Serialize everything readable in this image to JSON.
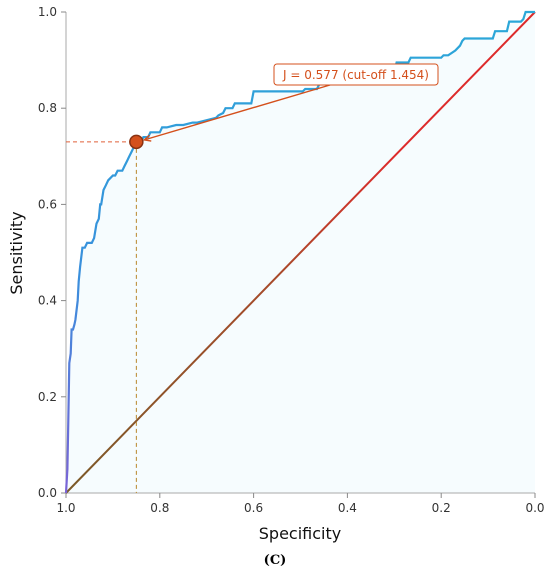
{
  "chart_data": {
    "type": "line",
    "title": "",
    "xlabel": "Specificity",
    "ylabel": "Sensitivity",
    "xlim": [
      1.0,
      0.0
    ],
    "ylim": [
      0.0,
      1.0
    ],
    "x_ticks": [
      "1.0",
      "0.8",
      "0.6",
      "0.4",
      "0.2",
      "0.0"
    ],
    "y_ticks": [
      "0.0",
      "0.2",
      "0.4",
      "0.6",
      "0.8",
      "1.0"
    ],
    "grid": false,
    "series": [
      {
        "color": "#2aa8d8",
        "x": [
          1.0,
          0.997,
          0.995,
          0.993,
          0.99,
          0.988,
          0.985,
          0.982,
          0.98,
          0.975,
          0.973,
          0.97,
          0.965,
          0.96,
          0.955,
          0.945,
          0.94,
          0.935,
          0.93,
          0.927,
          0.925,
          0.92,
          0.915,
          0.91,
          0.9,
          0.895,
          0.89,
          0.88,
          0.875,
          0.87,
          0.865,
          0.86,
          0.855,
          0.85,
          0.845,
          0.84,
          0.835,
          0.825,
          0.82,
          0.8,
          0.795,
          0.785,
          0.765,
          0.75,
          0.73,
          0.72,
          0.7,
          0.68,
          0.675,
          0.665,
          0.66,
          0.645,
          0.64,
          0.605,
          0.6,
          0.495,
          0.49,
          0.465,
          0.46,
          0.39,
          0.385,
          0.35,
          0.34,
          0.3,
          0.295,
          0.27,
          0.265,
          0.2,
          0.195,
          0.185,
          0.17,
          0.16,
          0.155,
          0.15,
          0.09,
          0.085,
          0.06,
          0.055,
          0.03,
          0.025,
          0.02,
          0.0
        ],
        "y": [
          0.0,
          0.05,
          0.15,
          0.27,
          0.29,
          0.34,
          0.34,
          0.35,
          0.36,
          0.4,
          0.44,
          0.47,
          0.51,
          0.51,
          0.52,
          0.52,
          0.53,
          0.56,
          0.57,
          0.6,
          0.6,
          0.63,
          0.64,
          0.65,
          0.66,
          0.66,
          0.67,
          0.67,
          0.68,
          0.69,
          0.7,
          0.71,
          0.72,
          0.73,
          0.73,
          0.73,
          0.74,
          0.74,
          0.75,
          0.75,
          0.76,
          0.76,
          0.765,
          0.765,
          0.77,
          0.77,
          0.775,
          0.78,
          0.785,
          0.79,
          0.8,
          0.8,
          0.81,
          0.81,
          0.835,
          0.835,
          0.84,
          0.84,
          0.85,
          0.85,
          0.87,
          0.87,
          0.875,
          0.875,
          0.895,
          0.895,
          0.905,
          0.905,
          0.91,
          0.91,
          0.92,
          0.93,
          0.94,
          0.945,
          0.945,
          0.96,
          0.96,
          0.98,
          0.98,
          0.985,
          1.0,
          1.0
        ]
      },
      {
        "color": "#dd2b2b",
        "x": [
          1.0,
          0.0
        ],
        "y": [
          0.0,
          1.0
        ]
      }
    ],
    "optimal_point": {
      "specificity": 0.85,
      "sensitivity": 0.73,
      "color": "#d4501c"
    },
    "annotation": {
      "text": "J = 0.577  (cut-off 1.454)",
      "color": "#d4501c"
    },
    "panel_label": "(C)"
  }
}
